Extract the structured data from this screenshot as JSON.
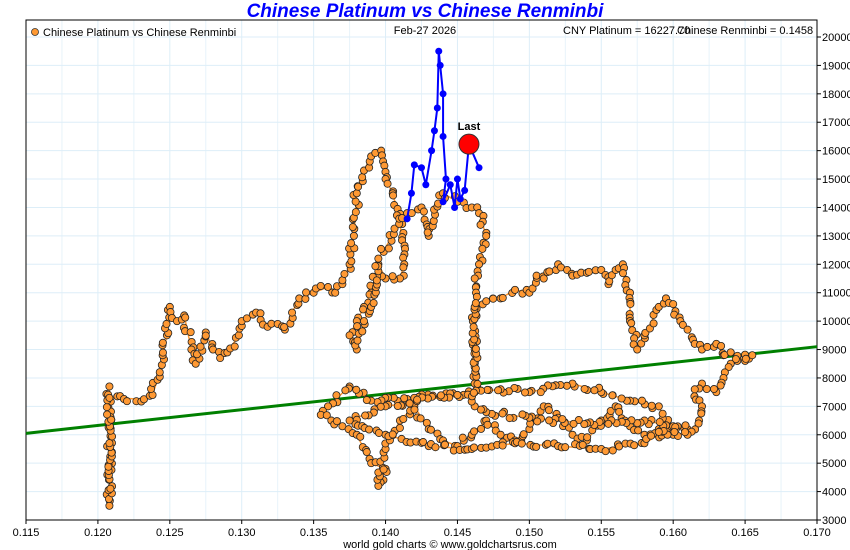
{
  "chart_data": {
    "type": "scatter",
    "title": "Chinese Platinum vs Chinese Renminbi",
    "legend": "Chinese Platinum vs Chinese Renminbi",
    "legend_placement": "top-left",
    "date": "Feb-27  2026",
    "readout_platinum": "CNY Platinum = 16227.70",
    "readout_renminbi": "Chinese Renminbi = 0.1458",
    "footer": "world gold charts © www.goldchartsrus.com",
    "last_label": "Last",
    "xlim": [
      0.115,
      0.17
    ],
    "ylim": [
      3000,
      20000
    ],
    "x_ticks": [
      "0.115",
      "0.120",
      "0.125",
      "0.130",
      "0.135",
      "0.140",
      "0.145",
      "0.150",
      "0.155",
      "0.160",
      "0.165",
      "0.170"
    ],
    "y_ticks": [
      "3000",
      "4000",
      "5000",
      "6000",
      "7000",
      "8000",
      "9000",
      "10000",
      "11000",
      "12000",
      "13000",
      "14000",
      "15000",
      "16000",
      "17000",
      "18000",
      "19000",
      "20000"
    ],
    "grid": true,
    "colors": {
      "history": "#ff9933",
      "history_line": "#ff9933",
      "recent": "#0000ff",
      "last": "#ff0000",
      "trend": "#008000",
      "title": "#0000ff"
    },
    "trend_line": [
      [
        0.115,
        6050
      ],
      [
        0.17,
        9100
      ]
    ],
    "last_point": [
      0.1458,
      16227.7
    ],
    "history_series": [
      [
        0.1208,
        7700
      ],
      [
        0.1208,
        3500
      ],
      [
        0.1208,
        7300
      ],
      [
        0.1232,
        7250
      ],
      [
        0.1238,
        7400
      ],
      [
        0.1243,
        8200
      ],
      [
        0.1245,
        8800
      ],
      [
        0.1248,
        9500
      ],
      [
        0.125,
        10500
      ],
      [
        0.1255,
        10000
      ],
      [
        0.126,
        10200
      ],
      [
        0.1265,
        9000
      ],
      [
        0.1268,
        8500
      ],
      [
        0.1275,
        9600
      ],
      [
        0.128,
        9000
      ],
      [
        0.1285,
        8700
      ],
      [
        0.129,
        8900
      ],
      [
        0.1298,
        9500
      ],
      [
        0.13,
        10000
      ],
      [
        0.131,
        10300
      ],
      [
        0.1318,
        9800
      ],
      [
        0.1325,
        9900
      ],
      [
        0.133,
        9700
      ],
      [
        0.1335,
        10300
      ],
      [
        0.134,
        10800
      ],
      [
        0.135,
        11000
      ],
      [
        0.136,
        11200
      ],
      [
        0.1365,
        11000
      ],
      [
        0.137,
        11300
      ],
      [
        0.1375,
        12000
      ],
      [
        0.1378,
        13000
      ],
      [
        0.138,
        14500
      ],
      [
        0.1385,
        15300
      ],
      [
        0.139,
        15800
      ],
      [
        0.1397,
        16000
      ],
      [
        0.14,
        15000
      ],
      [
        0.1405,
        14500
      ],
      [
        0.141,
        13500
      ],
      [
        0.1413,
        12000
      ],
      [
        0.141,
        11500
      ],
      [
        0.14,
        11500
      ],
      [
        0.1395,
        12000
      ],
      [
        0.139,
        11000
      ],
      [
        0.1385,
        10500
      ],
      [
        0.138,
        10000
      ],
      [
        0.1375,
        9500
      ],
      [
        0.138,
        9000
      ],
      [
        0.1385,
        10000
      ],
      [
        0.139,
        10500
      ],
      [
        0.1395,
        12200
      ],
      [
        0.1415,
        13800
      ],
      [
        0.1425,
        14000
      ],
      [
        0.143,
        13000
      ],
      [
        0.144,
        14500
      ],
      [
        0.145,
        14200
      ],
      [
        0.146,
        14000
      ],
      [
        0.1465,
        13800
      ],
      [
        0.147,
        13000
      ],
      [
        0.1465,
        12000
      ],
      [
        0.1462,
        11500
      ],
      [
        0.1462,
        9000
      ],
      [
        0.1462,
        7500
      ],
      [
        0.145,
        7400
      ],
      [
        0.142,
        7300
      ],
      [
        0.139,
        7200
      ],
      [
        0.1375,
        7700
      ],
      [
        0.136,
        7000
      ],
      [
        0.1355,
        6700
      ],
      [
        0.137,
        6300
      ],
      [
        0.138,
        6000
      ],
      [
        0.139,
        5000
      ],
      [
        0.14,
        4800
      ],
      [
        0.1395,
        4200
      ],
      [
        0.14,
        5500
      ],
      [
        0.141,
        6500
      ],
      [
        0.142,
        7000
      ],
      [
        0.143,
        6200
      ],
      [
        0.144,
        5800
      ],
      [
        0.145,
        5600
      ],
      [
        0.146,
        6000
      ],
      [
        0.147,
        6500
      ],
      [
        0.148,
        6000
      ],
      [
        0.149,
        5800
      ],
      [
        0.15,
        6200
      ],
      [
        0.151,
        7000
      ],
      [
        0.152,
        6600
      ],
      [
        0.153,
        6000
      ],
      [
        0.154,
        5800
      ],
      [
        0.155,
        6500
      ],
      [
        0.156,
        7000
      ],
      [
        0.157,
        6300
      ],
      [
        0.158,
        6000
      ],
      [
        0.159,
        6200
      ],
      [
        0.16,
        6000
      ],
      [
        0.159,
        7000
      ],
      [
        0.157,
        7200
      ],
      [
        0.155,
        7500
      ],
      [
        0.153,
        7800
      ],
      [
        0.15,
        7500
      ],
      [
        0.148,
        7600
      ],
      [
        0.145,
        7400
      ],
      [
        0.14,
        7000
      ],
      [
        0.1375,
        6500
      ],
      [
        0.14,
        6000
      ],
      [
        0.143,
        5600
      ],
      [
        0.146,
        5500
      ],
      [
        0.149,
        5700
      ],
      [
        0.152,
        5600
      ],
      [
        0.155,
        5500
      ],
      [
        0.158,
        5700
      ],
      [
        0.16,
        6300
      ],
      [
        0.161,
        6200
      ],
      [
        0.158,
        6500
      ],
      [
        0.154,
        6400
      ],
      [
        0.15,
        6600
      ],
      [
        0.147,
        6800
      ],
      [
        0.1462,
        7000
      ],
      [
        0.1462,
        10500
      ],
      [
        0.147,
        10700
      ],
      [
        0.148,
        10800
      ],
      [
        0.149,
        11100
      ],
      [
        0.15,
        11000
      ],
      [
        0.1505,
        11600
      ],
      [
        0.151,
        11500
      ],
      [
        0.152,
        12000
      ],
      [
        0.153,
        11600
      ],
      [
        0.154,
        11700
      ],
      [
        0.155,
        11800
      ],
      [
        0.1555,
        11300
      ],
      [
        0.156,
        11800
      ],
      [
        0.1565,
        12000
      ],
      [
        0.157,
        11000
      ],
      [
        0.157,
        10000
      ],
      [
        0.1575,
        9000
      ],
      [
        0.158,
        9500
      ],
      [
        0.159,
        10500
      ],
      [
        0.1595,
        10800
      ],
      [
        0.16,
        10600
      ],
      [
        0.1605,
        10000
      ],
      [
        0.161,
        9700
      ],
      [
        0.1615,
        9200
      ],
      [
        0.162,
        9000
      ],
      [
        0.163,
        9200
      ],
      [
        0.1635,
        8800
      ],
      [
        0.164,
        8900
      ],
      [
        0.165,
        8600
      ],
      [
        0.1655,
        8800
      ],
      [
        0.164,
        8500
      ],
      [
        0.1635,
        8000
      ],
      [
        0.163,
        7500
      ],
      [
        0.162,
        7800
      ],
      [
        0.1615,
        7600
      ],
      [
        0.162,
        7000
      ],
      [
        0.1618,
        6500
      ],
      [
        0.161,
        6000
      ],
      [
        0.159,
        6100
      ]
    ],
    "recent_series": [
      [
        0.1415,
        13600
      ],
      [
        0.1418,
        14500
      ],
      [
        0.142,
        15500
      ],
      [
        0.1425,
        15400
      ],
      [
        0.1428,
        14800
      ],
      [
        0.1432,
        16000
      ],
      [
        0.1434,
        16700
      ],
      [
        0.1436,
        17500
      ],
      [
        0.1437,
        19500
      ],
      [
        0.1438,
        19000
      ],
      [
        0.144,
        18000
      ],
      [
        0.144,
        16500
      ],
      [
        0.1442,
        15000
      ],
      [
        0.144,
        14200
      ],
      [
        0.1445,
        14800
      ],
      [
        0.1448,
        14000
      ],
      [
        0.145,
        15000
      ],
      [
        0.1452,
        14300
      ],
      [
        0.1455,
        14600
      ],
      [
        0.1458,
        16227.7
      ],
      [
        0.1465,
        15400
      ]
    ]
  }
}
